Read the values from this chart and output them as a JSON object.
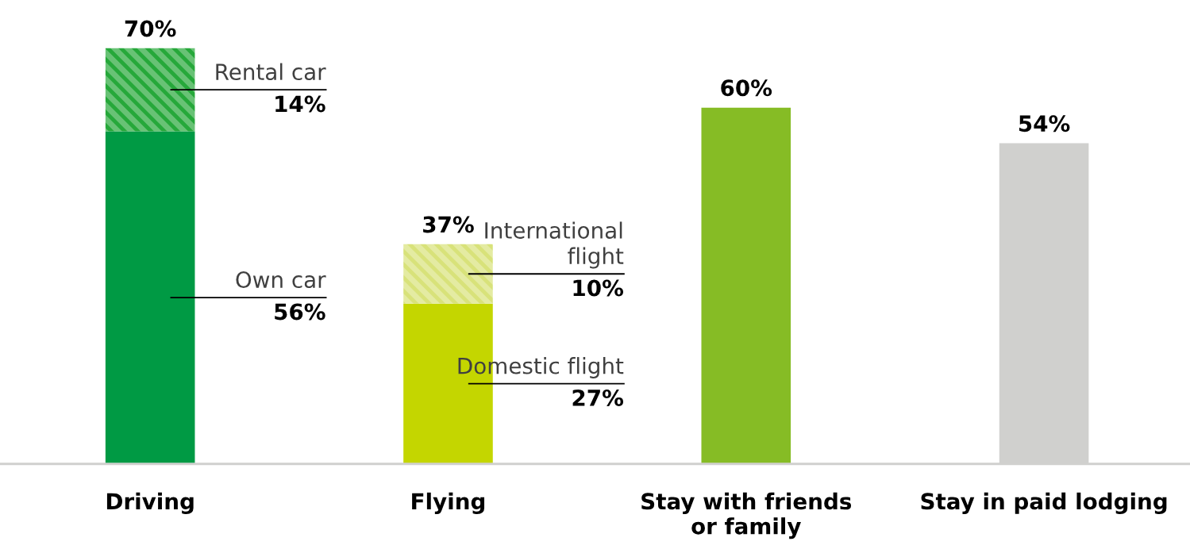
{
  "chart_data": {
    "type": "bar",
    "stacked": true,
    "categories": [
      "Driving",
      "Flying",
      "Stay with friends\nor family",
      "Stay in paid lodging"
    ],
    "series": [
      {
        "colors": [
          "#009a44",
          "#c4d600",
          "#86bc25",
          "#d0d0ce"
        ],
        "values": [
          56,
          27,
          60,
          54
        ],
        "value_labels": [
          "56%",
          "27%",
          null,
          null
        ]
      },
      {
        "colors": [
          "#26a83a",
          "#d8e27a",
          "#86bc25",
          "#d0d0ce"
        ],
        "values": [
          14,
          10,
          null,
          null
        ],
        "value_labels": [
          "14%",
          "10%",
          null,
          null
        ]
      }
    ],
    "totals": [
      "70%",
      "37%",
      "60%",
      "54%"
    ],
    "annotations": [
      "Own car",
      "Domestic flight",
      "Rental car",
      "International\nflight"
    ],
    "tick_labels": "x",
    "grid": false,
    "legend": false
  }
}
